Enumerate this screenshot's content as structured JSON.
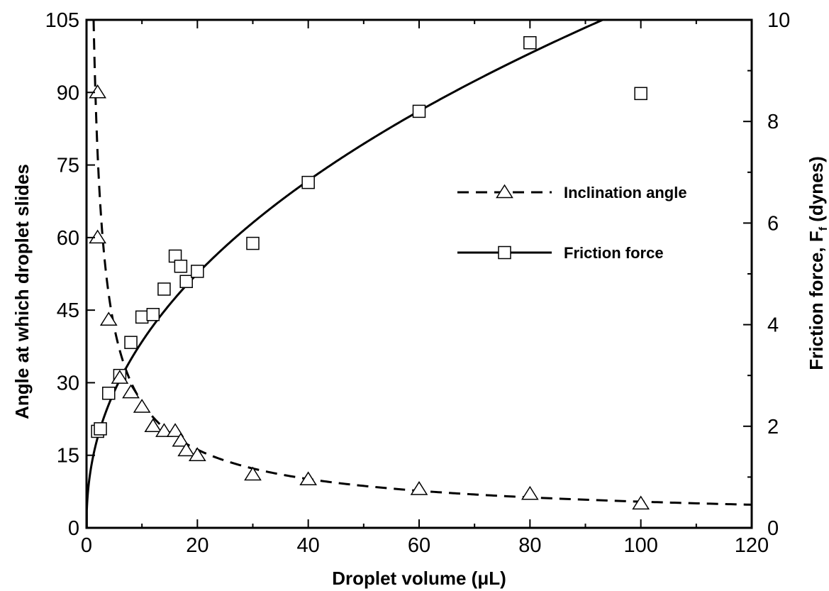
{
  "chart_data": {
    "type": "scatter",
    "xlabel": "Droplet volume (μL)",
    "ylabel_left": "Angle at which droplet slides",
    "ylabel_right_main": "Friction force, F",
    "ylabel_right_sub": "f",
    "ylabel_right_unit": " (dynes)",
    "xlim": [
      0,
      120
    ],
    "ylim_left": [
      0,
      105
    ],
    "ylim_right": [
      0,
      10
    ],
    "x_ticks": [
      0,
      20,
      40,
      60,
      80,
      100,
      120
    ],
    "y_left_ticks": [
      0,
      15,
      30,
      45,
      60,
      75,
      90,
      105
    ],
    "y_right_ticks": [
      0,
      2,
      4,
      6,
      8,
      10
    ],
    "grid": false,
    "legend_position": "right-middle",
    "series": [
      {
        "name": "Inclination angle",
        "axis": "left",
        "marker": "triangle",
        "line_style": "dashed",
        "points": [
          {
            "x": 2,
            "y": 90
          },
          {
            "x": 2,
            "y": 60
          },
          {
            "x": 4,
            "y": 43
          },
          {
            "x": 6,
            "y": 31
          },
          {
            "x": 8,
            "y": 28
          },
          {
            "x": 10,
            "y": 25
          },
          {
            "x": 12,
            "y": 21
          },
          {
            "x": 14,
            "y": 20
          },
          {
            "x": 16,
            "y": 20
          },
          {
            "x": 17,
            "y": 18
          },
          {
            "x": 18,
            "y": 16
          },
          {
            "x": 20,
            "y": 15
          },
          {
            "x": 30,
            "y": 11
          },
          {
            "x": 40,
            "y": 10
          },
          {
            "x": 60,
            "y": 8
          },
          {
            "x": 80,
            "y": 7
          },
          {
            "x": 100,
            "y": 5
          }
        ],
        "fit": {
          "form": "y = a / x^b",
          "a": 124,
          "b": 0.68
        }
      },
      {
        "name": "Friction force",
        "axis": "right",
        "marker": "square",
        "line_style": "solid",
        "points": [
          {
            "x": 2,
            "y": 1.9
          },
          {
            "x": 2.5,
            "y": 1.95
          },
          {
            "x": 4,
            "y": 2.65
          },
          {
            "x": 6,
            "y": 3.0
          },
          {
            "x": 8,
            "y": 3.65
          },
          {
            "x": 10,
            "y": 4.15
          },
          {
            "x": 12,
            "y": 4.2
          },
          {
            "x": 14,
            "y": 4.7
          },
          {
            "x": 16,
            "y": 5.35
          },
          {
            "x": 17,
            "y": 5.15
          },
          {
            "x": 18,
            "y": 4.85
          },
          {
            "x": 20,
            "y": 5.05
          },
          {
            "x": 30,
            "y": 5.6
          },
          {
            "x": 40,
            "y": 6.8
          },
          {
            "x": 60,
            "y": 8.2
          },
          {
            "x": 80,
            "y": 9.55
          },
          {
            "x": 100,
            "y": 8.55
          }
        ],
        "fit": {
          "form": "y = a * x^b",
          "a": 1.3,
          "b": 0.45
        }
      }
    ]
  }
}
